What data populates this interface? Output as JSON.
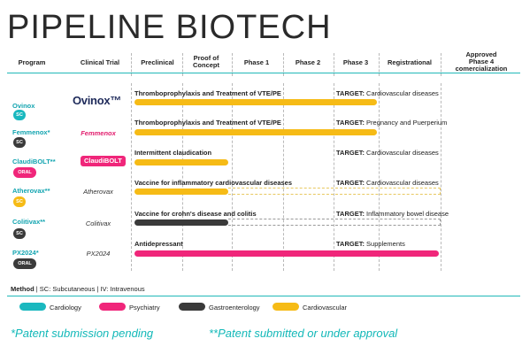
{
  "title": "PIPELINE BIOTECH",
  "headers": {
    "program": "Program",
    "clinical_trial": "Clinical Trial",
    "preclinical": "Preclinical",
    "proof_of_concept": "Proof of\nConcept",
    "phase1": "Phase 1",
    "phase2": "Phase 2",
    "phase3": "Phase 3",
    "registrational": "Registrational",
    "approved": "Approved\nPhase 4\ncomercialization"
  },
  "colors": {
    "cardiology": "#1ab8bf",
    "psychiatry": "#f0267a",
    "gastroenterology": "#3a3a3a",
    "cardiovascular": "#f6bb16",
    "teal": "#12a4b0"
  },
  "rows": [
    {
      "program": "Ovinox",
      "method": "SC",
      "trial": "Ovinox™",
      "indication": "Thromboprophylaxis and Treatment of VTE/PE",
      "target_label": "TARGET:",
      "target": "Cardiovascular diseases",
      "area": "cardiovascular"
    },
    {
      "program": "Femmenox*",
      "method": "SC",
      "trial": "Femmenox",
      "indication": "Thromboprophylaxis and Treatment of VTE/PE",
      "target_label": "TARGET:",
      "target": "Pregnancy and Puerperium",
      "area": "cardiovascular"
    },
    {
      "program": "ClaudiBOLT**",
      "method": "ORAL",
      "trial": "ClaudiBOLT",
      "indication": "Intermittent claudication",
      "target_label": "TARGET:",
      "target": "Cardiovascular diseases",
      "area": "cardiovascular"
    },
    {
      "program": "Atherovax**",
      "method": "SC",
      "trial": "Atherovax",
      "indication": "Vaccine for inflammatory cardiovascular diseases",
      "target_label": "TARGET:",
      "target": "Cardiovascular diseases",
      "area": "cardiovascular"
    },
    {
      "program": "Colitivax**",
      "method": "SC",
      "trial": "Colitivax",
      "indication": "Vaccine for crohn's disease and colitis",
      "target_label": "TARGET:",
      "target": "Inflammatory bowel disease",
      "area": "gastroenterology"
    },
    {
      "program": "PX2024*",
      "method": "ORAL",
      "trial": "PX2024",
      "indication": "Antidepressant",
      "target_label": "TARGET:",
      "target": "Supplements",
      "area": "psychiatry"
    }
  ],
  "method_note": {
    "label": "Method",
    "rest": " | SC: Subcutaneous | IV: Intravenous"
  },
  "legend": [
    {
      "label": "Cardiology",
      "color": "#1ab8bf"
    },
    {
      "label": "Psychiatry",
      "color": "#f0267a"
    },
    {
      "label": "Gastroenterology",
      "color": "#3a3a3a"
    },
    {
      "label": "Cardiovascular",
      "color": "#f6bb16"
    }
  ],
  "footnotes": {
    "single": "*Patent submission pending",
    "double": "**Patent submitted or under approval"
  }
}
